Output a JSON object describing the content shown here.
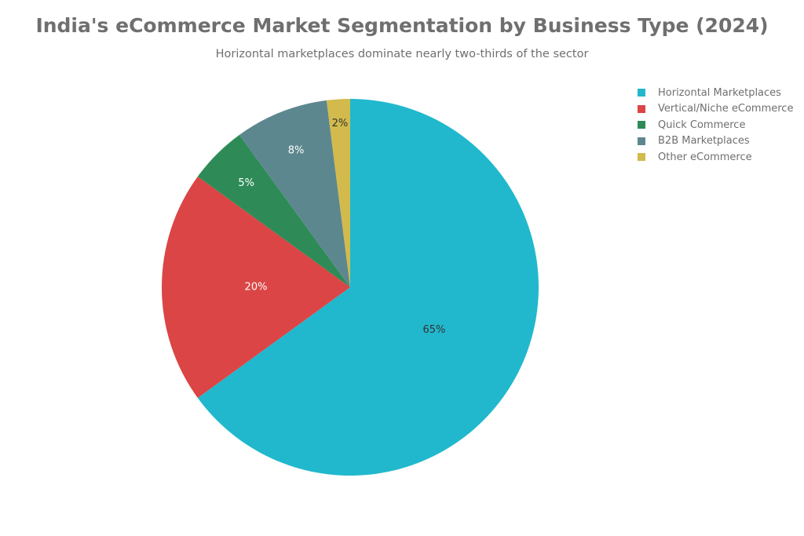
{
  "chart_data": {
    "type": "pie",
    "title": "India's eCommerce Market Segmentation by Business Type (2024)",
    "subtitle": "Horizontal marketplaces dominate nearly two-thirds of the sector",
    "legend_position": "top-right",
    "slices": [
      {
        "label": "Horizontal Marketplaces",
        "value": 65,
        "display": "65%",
        "color": "#21b8cd",
        "text_color": "#333333"
      },
      {
        "label": "Vertical/Niche eCommerce",
        "value": 20,
        "display": "20%",
        "color": "#db4545",
        "text_color": "#ffffff"
      },
      {
        "label": "Quick Commerce",
        "value": 5,
        "display": "5%",
        "color": "#2e8b57",
        "text_color": "#ffffff"
      },
      {
        "label": "B2B Marketplaces",
        "value": 8,
        "display": "8%",
        "color": "#5d878f",
        "text_color": "#ffffff"
      },
      {
        "label": "Other eCommerce",
        "value": 2,
        "display": "2%",
        "color": "#d2ba4c",
        "text_color": "#333333"
      }
    ]
  }
}
